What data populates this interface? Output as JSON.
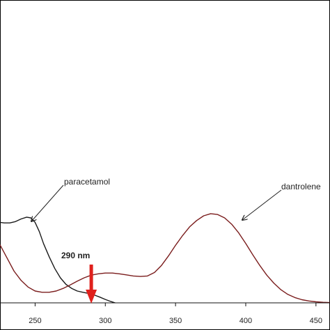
{
  "chart_data": {
    "type": "line",
    "title": "",
    "xlabel": "",
    "ylabel": "",
    "xlim": [
      225,
      460
    ],
    "ylim": [
      0,
      1
    ],
    "grid": false,
    "legend": "none",
    "x_ticks": [
      250,
      300,
      350,
      400,
      450
    ],
    "x_tick_labels": [
      "250",
      "300",
      "350",
      "400",
      "450"
    ],
    "series": [
      {
        "name": "paracetamol",
        "color": "#1a1a1a",
        "x": [
          225,
          228,
          232,
          236,
          240,
          244,
          247,
          250,
          253,
          256,
          260,
          264,
          268,
          272,
          276,
          280,
          284,
          288,
          292,
          296,
          300,
          304,
          307
        ],
        "y": [
          0.305,
          0.303,
          0.303,
          0.308,
          0.318,
          0.325,
          0.322,
          0.305,
          0.27,
          0.225,
          0.175,
          0.13,
          0.095,
          0.07,
          0.055,
          0.045,
          0.04,
          0.036,
          0.03,
          0.022,
          0.013,
          0.005,
          0.0
        ]
      },
      {
        "name": "dantrolene",
        "color": "#7a1c1c",
        "x": [
          225,
          230,
          235,
          240,
          245,
          250,
          255,
          260,
          265,
          270,
          275,
          280,
          285,
          290,
          295,
          300,
          305,
          310,
          315,
          320,
          325,
          330,
          335,
          340,
          345,
          350,
          355,
          360,
          365,
          370,
          375,
          380,
          385,
          390,
          395,
          400,
          405,
          410,
          415,
          420,
          425,
          430,
          435,
          440,
          445,
          450,
          455,
          460
        ],
        "y": [
          0.22,
          0.17,
          0.12,
          0.085,
          0.06,
          0.045,
          0.04,
          0.04,
          0.045,
          0.055,
          0.068,
          0.082,
          0.095,
          0.105,
          0.11,
          0.113,
          0.113,
          0.11,
          0.106,
          0.102,
          0.1,
          0.102,
          0.115,
          0.142,
          0.178,
          0.218,
          0.255,
          0.288,
          0.312,
          0.33,
          0.338,
          0.335,
          0.322,
          0.298,
          0.265,
          0.225,
          0.182,
          0.142,
          0.105,
          0.075,
          0.05,
          0.032,
          0.02,
          0.012,
          0.007,
          0.004,
          0.002,
          0.001
        ]
      }
    ],
    "annotations": [
      {
        "text": "paracetamol",
        "points_to": [
          251,
          0.28
        ]
      },
      {
        "text": "dantrolene",
        "points_to": [
          388,
          0.32
        ]
      },
      {
        "text": "290 nm",
        "marker_x": 290
      }
    ]
  }
}
